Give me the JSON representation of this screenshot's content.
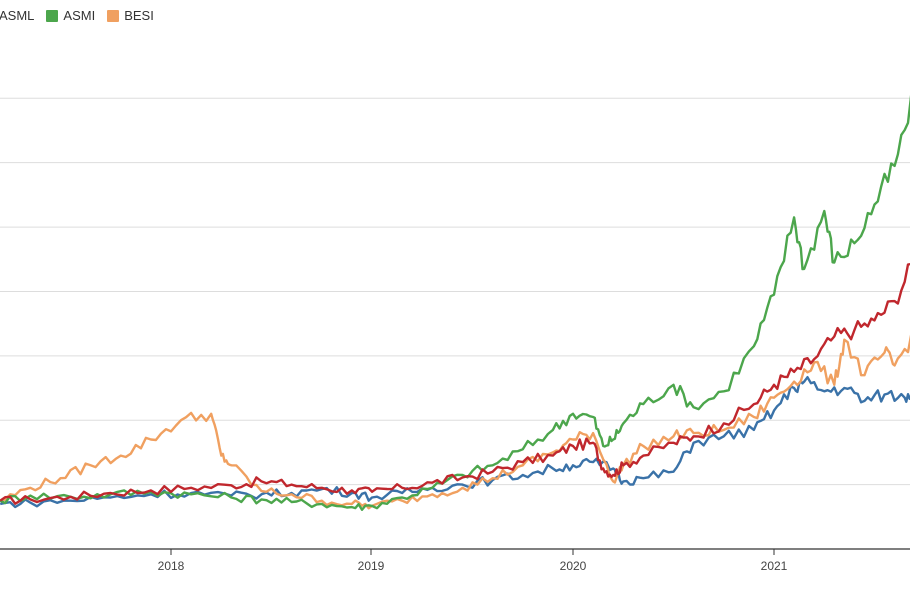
{
  "legend": {
    "items": [
      {
        "label": "ASML",
        "color": "#c0272d"
      },
      {
        "label": "ASMI",
        "color": "#4ca64c"
      },
      {
        "label": "BESI",
        "color": "#f0a060"
      }
    ]
  },
  "chart_data": {
    "type": "line",
    "xlabel": "",
    "ylabel": "",
    "x_ticks": [
      "2018",
      "2019",
      "2020",
      "2021"
    ],
    "grid": true,
    "legend_position": "top-left",
    "series": [
      {
        "name": "ASML",
        "color": "#c0272d",
        "x": [
          2017.15,
          2017.3,
          2017.5,
          2017.7,
          2017.9,
          2018.1,
          2018.3,
          2018.45,
          2018.6,
          2018.75,
          2018.9,
          2019.0,
          2019.15,
          2019.3,
          2019.45,
          2019.6,
          2019.75,
          2019.9,
          2020.0,
          2020.1,
          2020.15,
          2020.2,
          2020.25,
          2020.35,
          2020.5,
          2020.6,
          2020.75,
          2020.9,
          2021.0,
          2021.1,
          2021.2,
          2021.3,
          2021.4,
          2021.5,
          2021.6,
          2021.7
        ],
        "y": [
          1.0,
          1.02,
          1.06,
          1.12,
          1.16,
          1.2,
          1.24,
          1.3,
          1.25,
          1.2,
          1.16,
          1.14,
          1.2,
          1.28,
          1.36,
          1.45,
          1.6,
          1.7,
          1.85,
          1.9,
          1.5,
          1.4,
          1.55,
          1.7,
          1.9,
          2.0,
          2.2,
          2.5,
          2.8,
          3.0,
          3.2,
          3.55,
          3.65,
          3.8,
          4.1,
          4.75
        ]
      },
      {
        "name": "ASMI",
        "color": "#4ca64c",
        "x": [
          2017.15,
          2017.3,
          2017.5,
          2017.7,
          2017.9,
          2018.1,
          2018.3,
          2018.45,
          2018.6,
          2018.75,
          2018.9,
          2019.0,
          2019.15,
          2019.3,
          2019.45,
          2019.6,
          2019.75,
          2019.9,
          2020.0,
          2020.1,
          2020.15,
          2020.2,
          2020.25,
          2020.35,
          2020.5,
          2020.6,
          2020.75,
          2020.9,
          2021.0,
          2021.1,
          2021.15,
          2021.25,
          2021.3,
          2021.4,
          2021.5,
          2021.6,
          2021.7
        ],
        "y": [
          1.0,
          1.08,
          1.06,
          1.1,
          1.14,
          1.1,
          1.05,
          1.02,
          0.98,
          0.95,
          0.9,
          0.92,
          1.05,
          1.2,
          1.4,
          1.55,
          1.8,
          2.1,
          2.35,
          2.3,
          1.85,
          1.95,
          2.2,
          2.5,
          2.8,
          2.45,
          2.7,
          3.4,
          4.2,
          5.4,
          4.6,
          5.5,
          4.7,
          5.0,
          5.6,
          6.2,
          7.3
        ]
      },
      {
        "name": "BESI",
        "color": "#f0a060",
        "x": [
          2017.15,
          2017.3,
          2017.45,
          2017.6,
          2017.75,
          2017.9,
          2018.05,
          2018.2,
          2018.25,
          2018.3,
          2018.45,
          2018.6,
          2018.75,
          2018.9,
          2019.0,
          2019.15,
          2019.3,
          2019.45,
          2019.6,
          2019.75,
          2019.9,
          2020.0,
          2020.1,
          2020.2,
          2020.25,
          2020.35,
          2020.5,
          2020.6,
          2020.75,
          2020.9,
          2021.0,
          2021.1,
          2021.2,
          2021.3,
          2021.35,
          2021.45,
          2021.55,
          2021.6,
          2021.7
        ],
        "y": [
          1.0,
          1.2,
          1.35,
          1.55,
          1.7,
          1.95,
          2.25,
          2.35,
          1.7,
          1.55,
          1.15,
          1.1,
          1.0,
          0.95,
          0.92,
          1.0,
          1.1,
          1.2,
          1.35,
          1.55,
          1.75,
          1.95,
          2.05,
          1.3,
          1.55,
          1.85,
          2.0,
          2.05,
          2.1,
          2.3,
          2.6,
          2.85,
          3.15,
          2.8,
          3.5,
          2.95,
          3.3,
          3.1,
          3.6
        ]
      },
      {
        "name": "",
        "color": "#3a72a8",
        "x": [
          2017.15,
          2017.3,
          2017.5,
          2017.7,
          2017.9,
          2018.1,
          2018.3,
          2018.45,
          2018.6,
          2018.75,
          2018.9,
          2019.0,
          2019.15,
          2019.3,
          2019.45,
          2019.6,
          2019.75,
          2019.9,
          2020.0,
          2020.1,
          2020.2,
          2020.25,
          2020.35,
          2020.5,
          2020.6,
          2020.75,
          2020.9,
          2021.0,
          2021.1,
          2021.15,
          2021.25,
          2021.35,
          2021.45,
          2021.55,
          2021.65,
          2021.7
        ],
        "y": [
          0.95,
          0.97,
          1.0,
          1.05,
          1.1,
          1.12,
          1.08,
          1.1,
          1.12,
          1.18,
          1.12,
          1.05,
          1.12,
          1.2,
          1.25,
          1.32,
          1.4,
          1.5,
          1.55,
          1.6,
          1.5,
          1.3,
          1.35,
          1.45,
          1.9,
          2.0,
          2.1,
          2.4,
          2.75,
          2.85,
          2.7,
          2.75,
          2.55,
          2.65,
          2.6,
          2.75
        ]
      }
    ],
    "xlim": [
      2017.15,
      2021.7
    ],
    "ylim": [
      0.25,
      8.0
    ],
    "yticks": [
      0.25,
      1.25,
      2.25,
      3.25,
      4.25,
      5.25,
      6.25,
      7.25
    ]
  }
}
